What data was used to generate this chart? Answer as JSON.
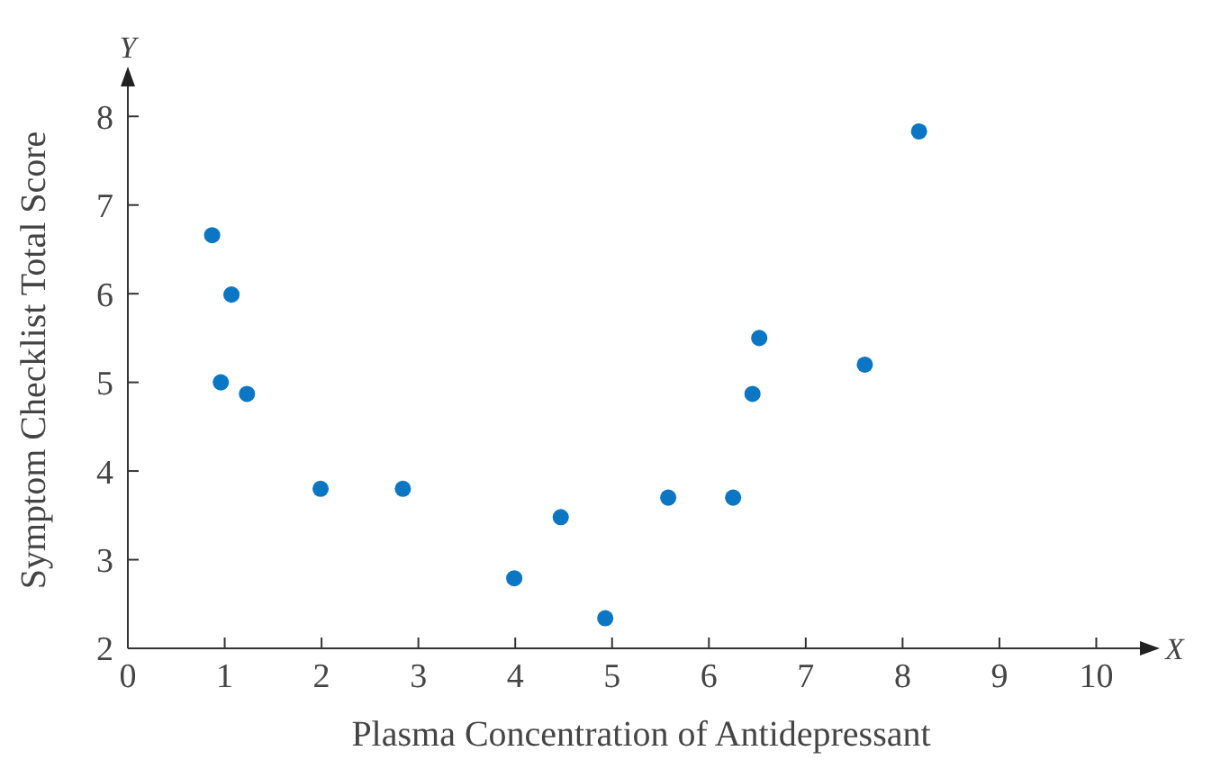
{
  "chart_data": {
    "type": "scatter",
    "xlabel": "Plasma Concentration of Antidepressant",
    "ylabel": "Symptom Checklist Total Score",
    "x": [
      0.87,
      1.07,
      0.96,
      1.23,
      1.99,
      2.84,
      3.99,
      4.47,
      4.93,
      5.58,
      6.25,
      6.45,
      6.52,
      7.61,
      8.17
    ],
    "series": [
      {
        "color": "#0a76c4",
        "values": [
          6.66,
          5.99,
          5.0,
          4.87,
          3.8,
          3.8,
          2.79,
          3.48,
          2.34,
          3.7,
          3.7,
          4.87,
          5.5,
          5.2,
          7.83
        ]
      }
    ],
    "xlim": [
      0,
      10.6
    ],
    "xticks": [
      0,
      1,
      2,
      3,
      4,
      5,
      6,
      7,
      8,
      9,
      10
    ],
    "ylim": [
      2,
      8.5
    ],
    "yticks": [
      2,
      3,
      4,
      5,
      6,
      7,
      8
    ],
    "annotations": [
      "Y",
      "X"
    ],
    "grid": false,
    "marker": "circle"
  }
}
